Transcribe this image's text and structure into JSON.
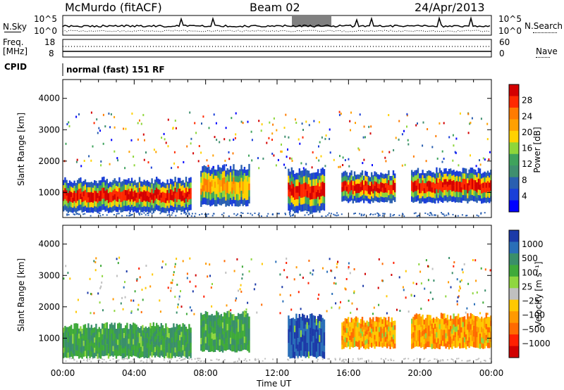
{
  "header": {
    "station": "McMurdo (fitACF)",
    "beam": "Beam 02",
    "date": "24/Apr/2013"
  },
  "noise_panel": {
    "left_label": "N.Sky",
    "right_label": "N.Search",
    "left_ticks": [
      "10^5",
      "10^0"
    ],
    "right_ticks": [
      "10^5",
      "10^0"
    ]
  },
  "freq_panel": {
    "left_label_line1": "Freq.",
    "left_label_line2": "[MHz]",
    "right_label": "Nave",
    "left_ticks": [
      "18",
      "8"
    ],
    "right_ticks": [
      "60",
      "0"
    ],
    "cpid_label": "CPID",
    "cpid_text": "normal (fast) 151 RF"
  },
  "chart_data": [
    {
      "type": "heatmap",
      "name": "power",
      "ylabel": "Slant Range [km]",
      "xlabel": "",
      "ylim": [
        200,
        4600
      ],
      "yticks": [
        "1000",
        "2000",
        "3000",
        "4000"
      ],
      "colorbar": {
        "label": "Power [dB]",
        "ticks": [
          "28",
          "24",
          "20",
          "16",
          "12",
          "8",
          "4"
        ],
        "colors": [
          "#d40000",
          "#ff2a00",
          "#ff7b00",
          "#ffa000",
          "#ffd200",
          "#8ed63a",
          "#3fa35c",
          "#3f8f6f",
          "#2a5fb0",
          "#1a3fd8",
          "#0000ff"
        ]
      },
      "echo_bands": [
        {
          "t0": 0.0,
          "t1": 7.2,
          "r0": 400,
          "r1": 1400,
          "peak": 28
        },
        {
          "t0": 7.7,
          "t1": 10.4,
          "r0": 600,
          "r1": 1800,
          "peak": 24
        },
        {
          "t0": 12.6,
          "t1": 14.6,
          "r0": 400,
          "r1": 1700,
          "peak": 28
        },
        {
          "t0": 15.6,
          "t1": 18.6,
          "r0": 700,
          "r1": 1600,
          "peak": 28
        },
        {
          "t0": 19.5,
          "t1": 24.0,
          "r0": 700,
          "r1": 1700,
          "peak": 28
        }
      ]
    },
    {
      "type": "heatmap",
      "name": "velocity",
      "ylabel": "Slant Range [km]",
      "xlabel": "Time UT",
      "ylim": [
        200,
        4600
      ],
      "yticks": [
        "1000",
        "2000",
        "3000",
        "4000"
      ],
      "xticks": [
        "00:00",
        "04:00",
        "08:00",
        "12:00",
        "16:00",
        "20:00",
        "00:00"
      ],
      "colorbar": {
        "label": "Velocity [m s⁻¹]",
        "ticks": [
          "1000",
          "500",
          "100",
          "25",
          "−25",
          "−100",
          "−500",
          "−1000"
        ],
        "colors": [
          "#1c3aa8",
          "#2a6fb8",
          "#3a8f6a",
          "#3faa3a",
          "#8fd640",
          "#c0c0c0",
          "#ffc800",
          "#ff9900",
          "#ff6a00",
          "#ff2000",
          "#d00000"
        ]
      },
      "echo_bands": [
        {
          "t0": 0.0,
          "t1": 7.2,
          "r0": 400,
          "r1": 1400,
          "vel": 100
        },
        {
          "t0": 7.7,
          "t1": 10.4,
          "r0": 600,
          "r1": 1800,
          "vel": 100
        },
        {
          "t0": 12.6,
          "t1": 14.6,
          "r0": 400,
          "r1": 1700,
          "vel": 500
        },
        {
          "t0": 15.6,
          "t1": 18.6,
          "r0": 700,
          "r1": 1600,
          "vel": -100
        },
        {
          "t0": 19.5,
          "t1": 24.0,
          "r0": 700,
          "r1": 1700,
          "vel": -100
        }
      ]
    }
  ]
}
